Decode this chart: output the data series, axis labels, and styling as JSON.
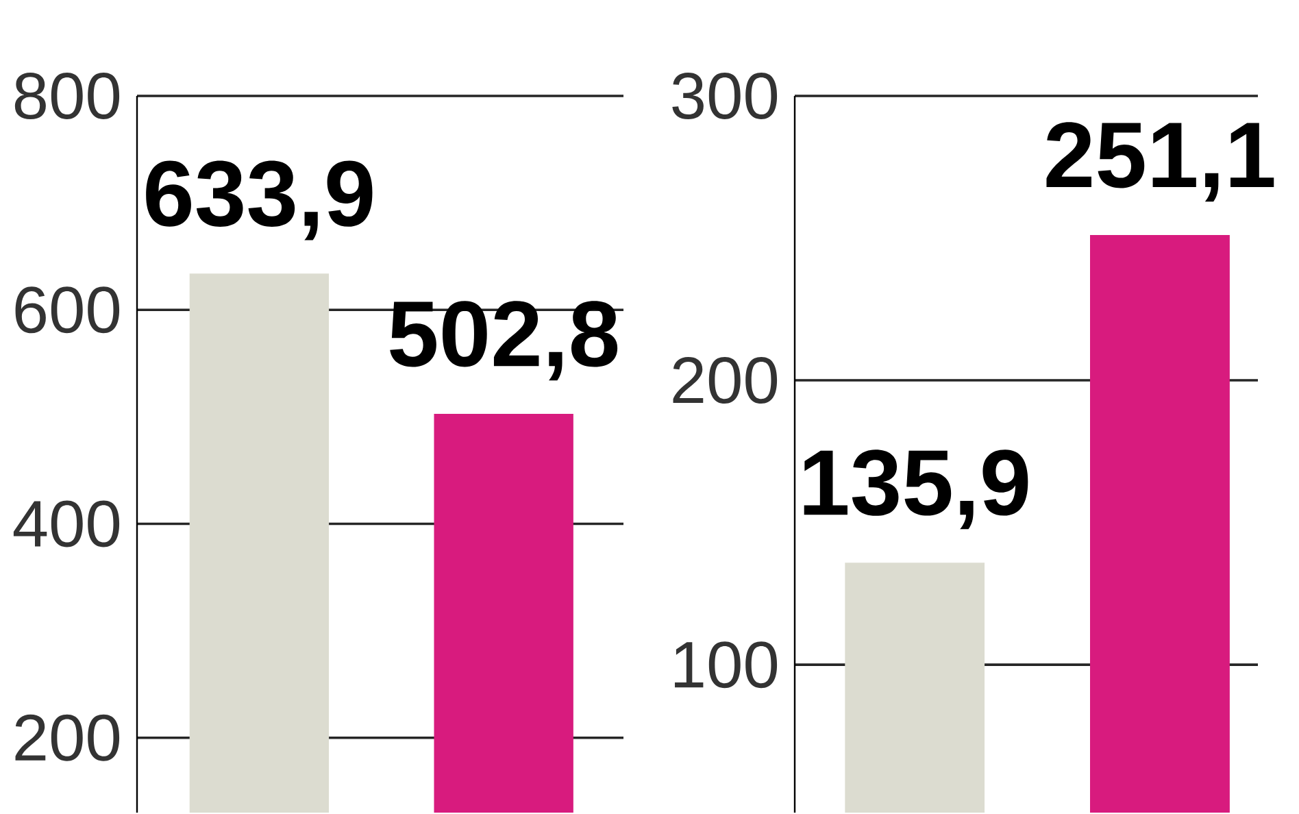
{
  "chart_data": [
    {
      "type": "bar",
      "categories": [
        null,
        null
      ],
      "values": [
        633.9,
        502.8
      ],
      "colors": [
        "#dcdcd0",
        "#d81b7e"
      ],
      "value_labels": [
        "633,9",
        "502,8"
      ],
      "ylim": [
        130,
        800
      ],
      "yticks": [
        200,
        400,
        600,
        800
      ],
      "grid": "y"
    },
    {
      "type": "bar",
      "categories": [
        null,
        null
      ],
      "values": [
        135.9,
        251.1
      ],
      "colors": [
        "#dcdcd0",
        "#d81b7e"
      ],
      "value_labels": [
        "135,9",
        "251,1"
      ],
      "ylim": [
        48,
        300
      ],
      "yticks": [
        100,
        200,
        300
      ],
      "grid": "y"
    }
  ]
}
